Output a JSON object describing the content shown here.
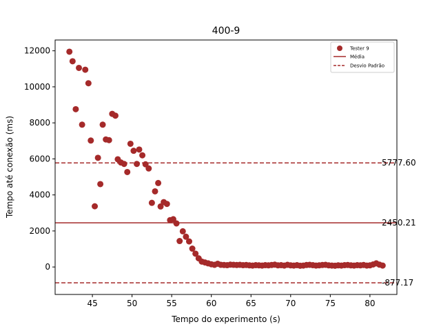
{
  "chart_data": {
    "type": "scatter",
    "title": "400-9",
    "xlabel": "Tempo do experimento (s)",
    "ylabel": "Tempo até conexão (ms)",
    "xlim": [
      40.3,
      83.4
    ],
    "ylim": [
      -1525,
      12600
    ],
    "xticks": [
      45,
      50,
      55,
      60,
      65,
      70,
      75,
      80
    ],
    "yticks": [
      0,
      2000,
      4000,
      6000,
      8000,
      10000,
      12000
    ],
    "grid": false,
    "legend_position": "top-right",
    "series": [
      {
        "name": "Tester 9",
        "color": "#a52a2a",
        "points": [
          [
            42.1,
            11950
          ],
          [
            42.5,
            11420
          ],
          [
            42.9,
            8760
          ],
          [
            43.3,
            11050
          ],
          [
            43.7,
            7900
          ],
          [
            44.1,
            10950
          ],
          [
            44.5,
            10200
          ],
          [
            44.8,
            7020
          ],
          [
            45.3,
            3370
          ],
          [
            45.7,
            6060
          ],
          [
            46.0,
            4600
          ],
          [
            46.3,
            7900
          ],
          [
            46.7,
            7080
          ],
          [
            47.1,
            7040
          ],
          [
            47.5,
            8500
          ],
          [
            47.9,
            8400
          ],
          [
            48.2,
            5980
          ],
          [
            48.6,
            5800
          ],
          [
            49.0,
            5720
          ],
          [
            49.4,
            5270
          ],
          [
            49.8,
            6840
          ],
          [
            50.2,
            6450
          ],
          [
            50.6,
            5720
          ],
          [
            50.9,
            6520
          ],
          [
            51.3,
            6200
          ],
          [
            51.7,
            5700
          ],
          [
            52.1,
            5470
          ],
          [
            52.5,
            3560
          ],
          [
            52.9,
            4200
          ],
          [
            53.3,
            4660
          ],
          [
            53.6,
            3360
          ],
          [
            54.0,
            3600
          ],
          [
            54.4,
            3500
          ],
          [
            54.8,
            2600
          ],
          [
            55.2,
            2650
          ],
          [
            55.6,
            2420
          ],
          [
            56.0,
            1440
          ],
          [
            56.4,
            1980
          ],
          [
            56.8,
            1680
          ],
          [
            57.2,
            1420
          ],
          [
            57.6,
            1020
          ],
          [
            58.0,
            740
          ],
          [
            58.4,
            480
          ],
          [
            58.8,
            300
          ],
          [
            59.2,
            250
          ],
          [
            59.6,
            200
          ],
          [
            60.0,
            150
          ],
          [
            60.4,
            120
          ],
          [
            60.8,
            180
          ],
          [
            61.2,
            120
          ],
          [
            61.6,
            110
          ],
          [
            62.0,
            100
          ],
          [
            62.4,
            130
          ],
          [
            62.8,
            120
          ],
          [
            63.2,
            110
          ],
          [
            63.6,
            120
          ],
          [
            64.0,
            100
          ],
          [
            64.4,
            110
          ],
          [
            64.8,
            90
          ],
          [
            65.2,
            80
          ],
          [
            65.6,
            100
          ],
          [
            66.0,
            90
          ],
          [
            66.4,
            80
          ],
          [
            66.8,
            100
          ],
          [
            67.2,
            90
          ],
          [
            67.6,
            110
          ],
          [
            68.0,
            130
          ],
          [
            68.4,
            90
          ],
          [
            68.8,
            100
          ],
          [
            69.2,
            80
          ],
          [
            69.6,
            120
          ],
          [
            70.0,
            90
          ],
          [
            70.4,
            80
          ],
          [
            70.8,
            100
          ],
          [
            71.2,
            70
          ],
          [
            71.6,
            80
          ],
          [
            72.0,
            110
          ],
          [
            72.4,
            120
          ],
          [
            72.8,
            100
          ],
          [
            73.2,
            80
          ],
          [
            73.6,
            90
          ],
          [
            74.0,
            110
          ],
          [
            74.4,
            120
          ],
          [
            74.8,
            90
          ],
          [
            75.2,
            80
          ],
          [
            75.6,
            70
          ],
          [
            76.0,
            90
          ],
          [
            76.4,
            80
          ],
          [
            76.8,
            100
          ],
          [
            77.2,
            110
          ],
          [
            77.6,
            90
          ],
          [
            78.0,
            80
          ],
          [
            78.4,
            100
          ],
          [
            78.8,
            90
          ],
          [
            79.2,
            110
          ],
          [
            79.6,
            80
          ],
          [
            80.0,
            90
          ],
          [
            80.4,
            140
          ],
          [
            80.8,
            200
          ],
          [
            81.2,
            130
          ],
          [
            81.6,
            80
          ]
        ]
      }
    ],
    "lines": [
      {
        "name": "Média",
        "y": 2450.21,
        "style": "solid",
        "color": "#a52a2a",
        "label": "2450.21"
      },
      {
        "name": "Desvio Padrão",
        "y": 5777.6,
        "style": "dashed",
        "color": "#a52a2a",
        "label": "5777.60"
      },
      {
        "name": "Desvio Padrão",
        "y": -877.17,
        "style": "dashed",
        "color": "#a52a2a",
        "label": "-877.17"
      }
    ],
    "legend": [
      {
        "label": "Tester 9",
        "kind": "marker"
      },
      {
        "label": "Média",
        "kind": "solid"
      },
      {
        "label": "Desvio Padrão",
        "kind": "dashed"
      }
    ]
  }
}
